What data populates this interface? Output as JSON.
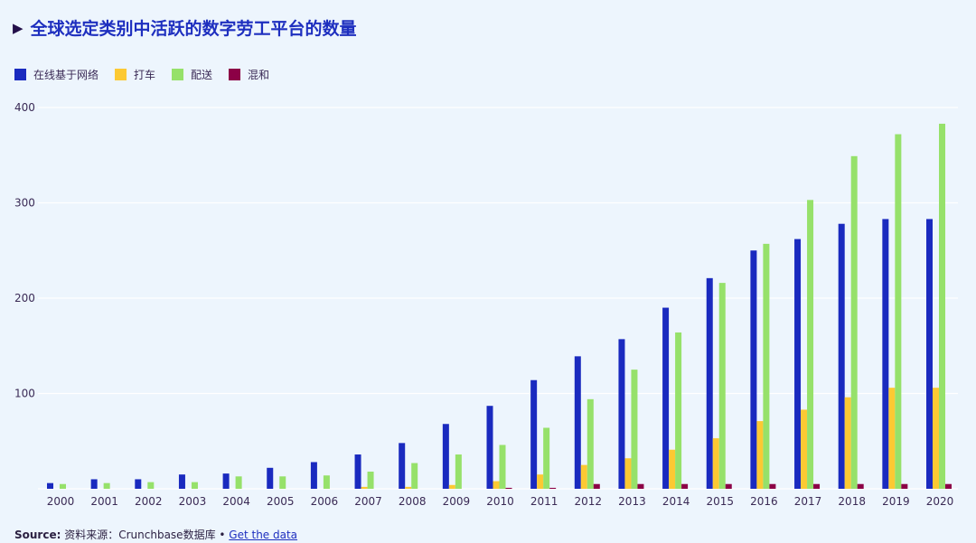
{
  "chart_data": {
    "type": "bar",
    "title": "全球选定类别中活跃的数字劳工平台的数量",
    "categories": [
      "2000",
      "2001",
      "2002",
      "2003",
      "2004",
      "2005",
      "2006",
      "2007",
      "2008",
      "2009",
      "2010",
      "2011",
      "2012",
      "2013",
      "2014",
      "2015",
      "2016",
      "2017",
      "2018",
      "2019",
      "2020"
    ],
    "series": [
      {
        "name": "在线基于网络",
        "color": "#1a2abf",
        "values": [
          6,
          10,
          10,
          15,
          16,
          22,
          28,
          36,
          48,
          68,
          87,
          114,
          139,
          157,
          190,
          221,
          250,
          262,
          278,
          283,
          283
        ]
      },
      {
        "name": "打车",
        "color": "#fcc933",
        "values": [
          0,
          0,
          0,
          0,
          0,
          0,
          0,
          2,
          2,
          4,
          8,
          15,
          25,
          32,
          41,
          53,
          71,
          83,
          96,
          106,
          106
        ]
      },
      {
        "name": "配送",
        "color": "#96e16a",
        "values": [
          5,
          6,
          7,
          7,
          13,
          13,
          14,
          18,
          27,
          36,
          46,
          64,
          94,
          125,
          164,
          216,
          257,
          303,
          349,
          372,
          383
        ]
      },
      {
        "name": "混和",
        "color": "#8c0046",
        "values": [
          0,
          0,
          0,
          0,
          0,
          0,
          0,
          0,
          0,
          0,
          1,
          1,
          5,
          5,
          5,
          5,
          5,
          5,
          5,
          5,
          5
        ]
      }
    ],
    "yticks": [
      "100",
      "200",
      "300",
      "400"
    ],
    "ylim": [
      0,
      400
    ],
    "xlabel": "",
    "ylabel": "",
    "grid": true,
    "legend": "top-left"
  },
  "footer": {
    "source_label": "Source:",
    "source_text": "资料来源：Crunchbase数据库 •",
    "link": "Get the data"
  }
}
